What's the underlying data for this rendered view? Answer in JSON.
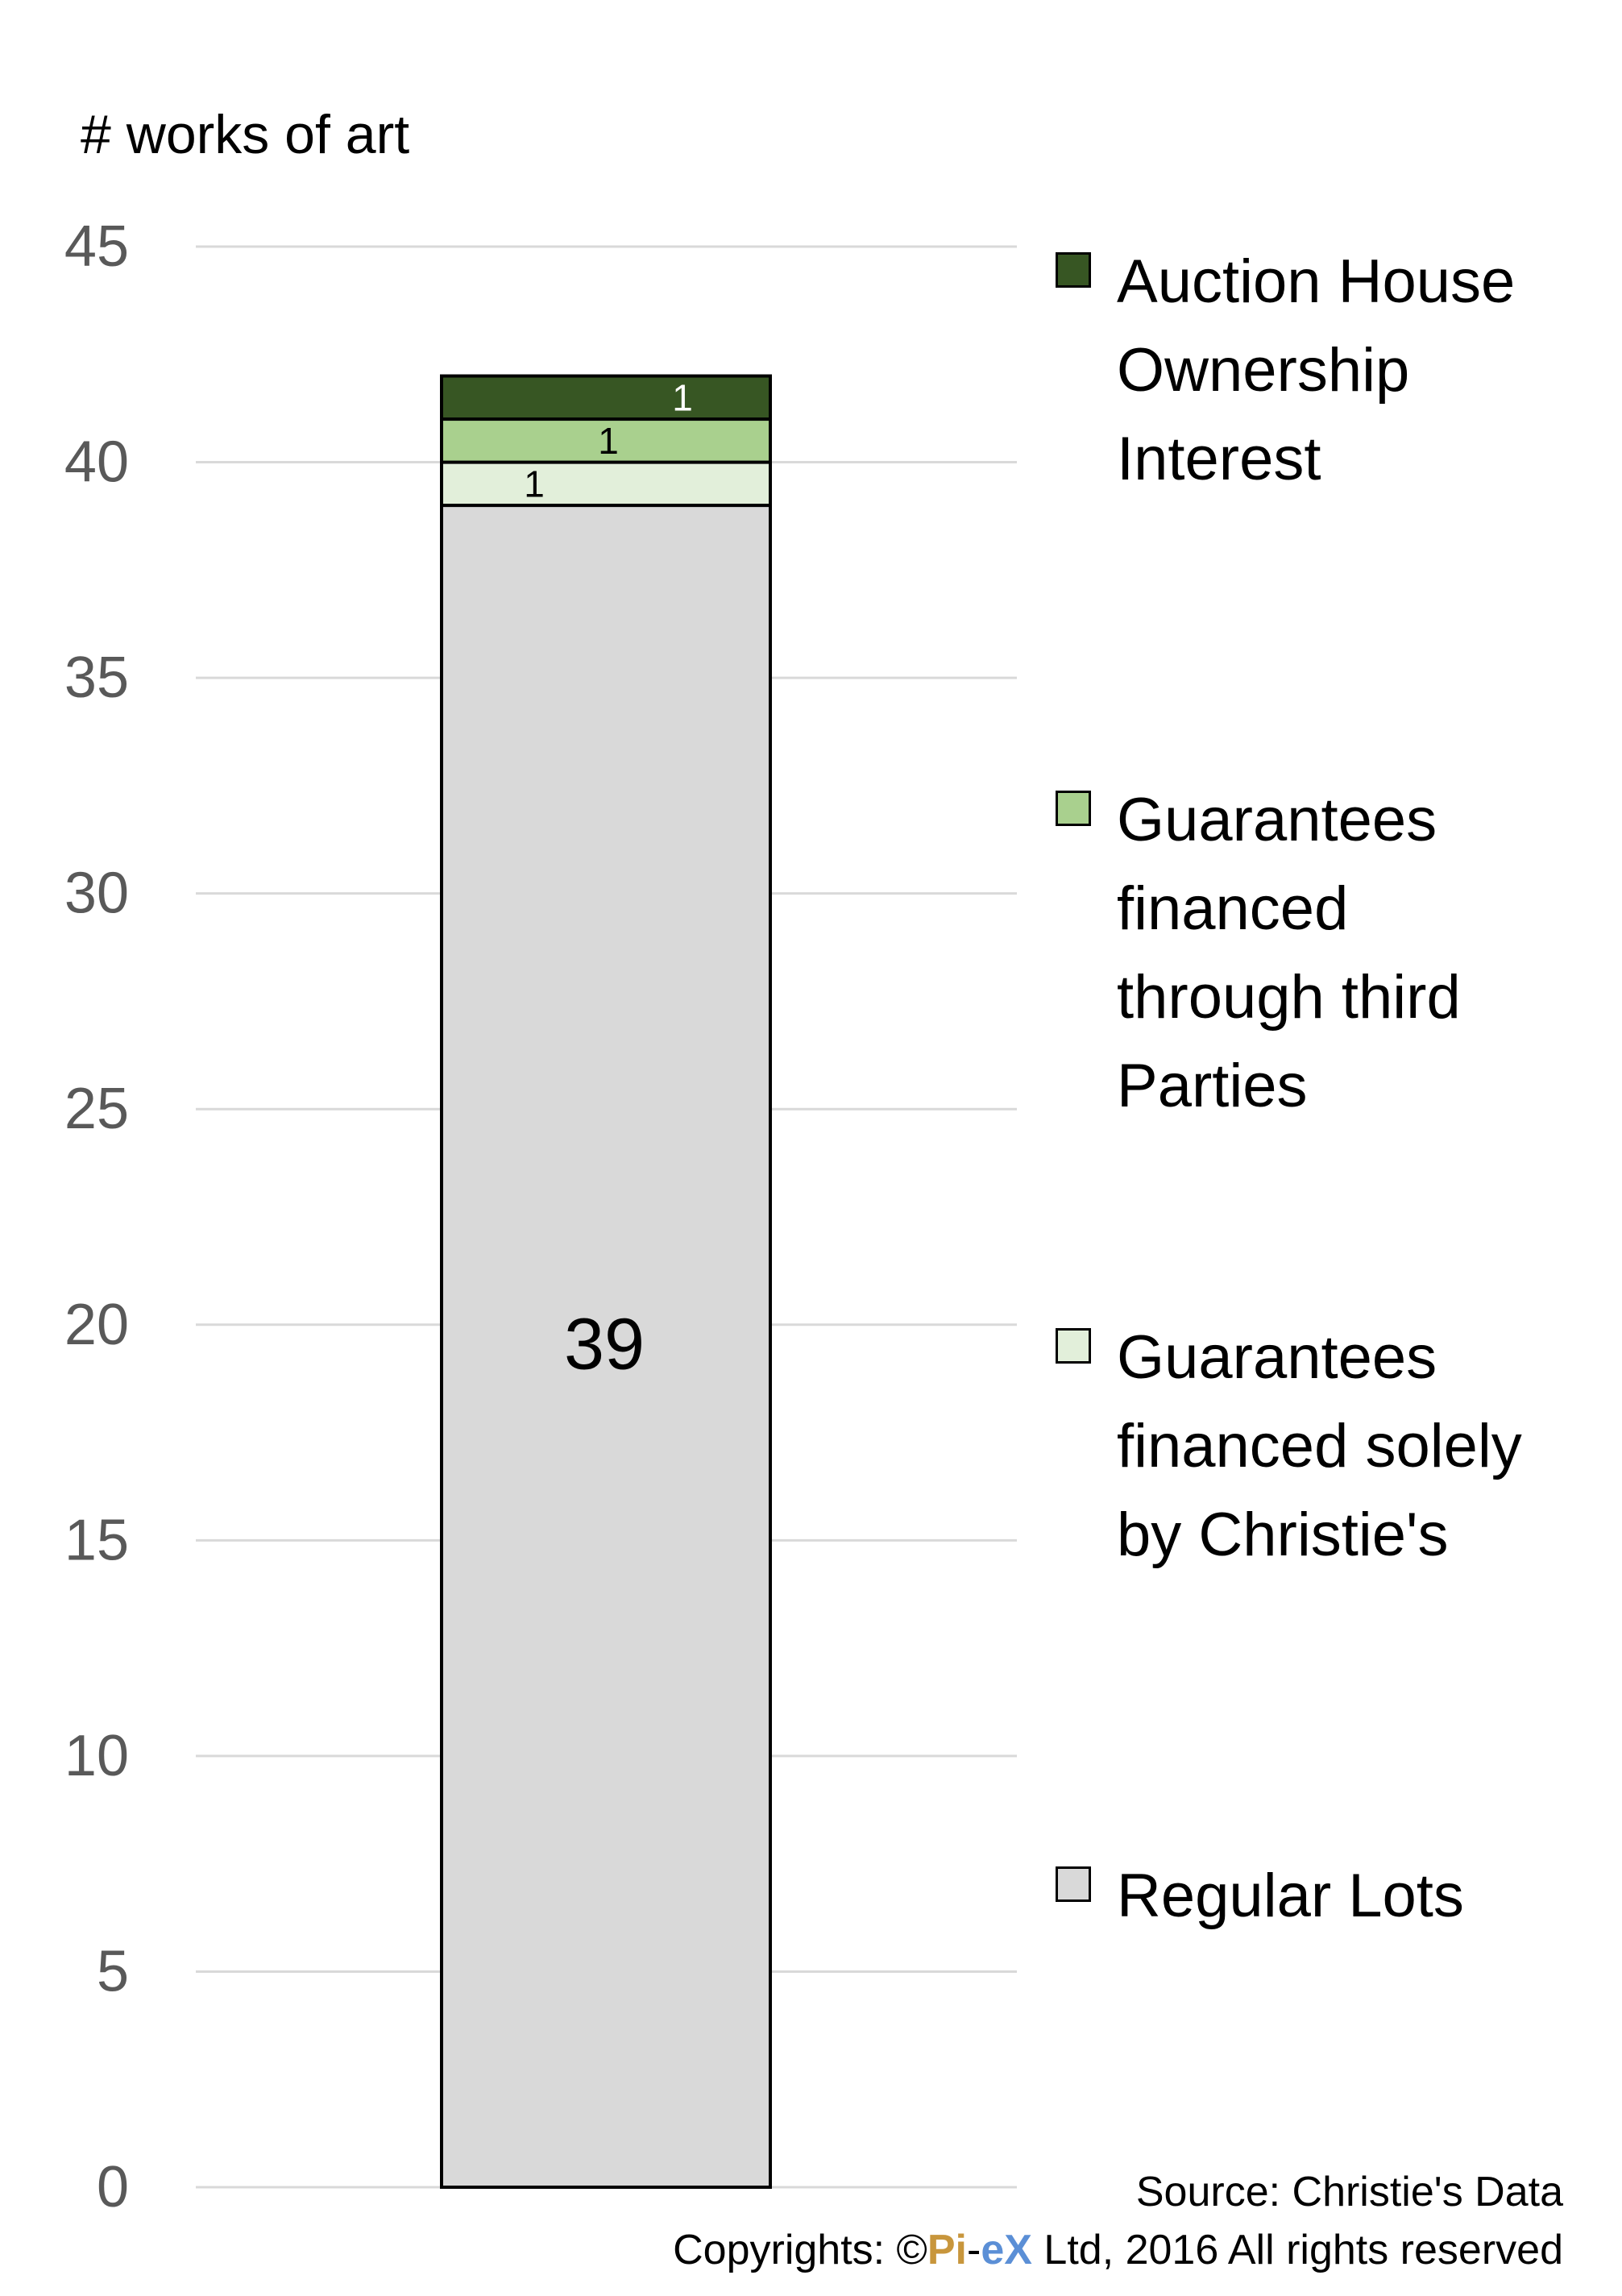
{
  "chart_data": {
    "type": "bar",
    "stacked": true,
    "ylabel": "# works of art",
    "ylim": [
      0,
      45
    ],
    "yticks": [
      0,
      5,
      10,
      15,
      20,
      25,
      30,
      35,
      40,
      45
    ],
    "grid": true,
    "legend_position": "right",
    "series": [
      {
        "name": "Regular Lots",
        "values": [
          39
        ],
        "color": "#d9d9d9",
        "label_color": "#000000"
      },
      {
        "name": "Guarantees financed solely by Christie's",
        "values": [
          1
        ],
        "color": "#e2efda",
        "label_color": "#000000"
      },
      {
        "name": "Guarantees financed through third Parties",
        "values": [
          1
        ],
        "color": "#a9d08e",
        "label_color": "#000000"
      },
      {
        "name": "Auction House Ownership Interest",
        "values": [
          1
        ],
        "color": "#375623",
        "label_color": "#ffffff"
      }
    ]
  },
  "legend": {
    "items": [
      {
        "label_lines": [
          "Auction House",
          "Ownership",
          "Interest"
        ],
        "color": "#375623"
      },
      {
        "label_lines": [
          "Guarantees",
          "financed",
          "through third",
          "Parties"
        ],
        "color": "#a9d08e"
      },
      {
        "label_lines": [
          "Guarantees",
          "financed solely",
          "by Christie's"
        ],
        "color": "#e2efda"
      },
      {
        "label_lines": [
          "Regular Lots"
        ],
        "color": "#d9d9d9"
      }
    ]
  },
  "footer": {
    "source": "Source: Christie's Data",
    "copyright_prefix": "Copyrights: ©",
    "brand_pi": "Pi",
    "brand_dash": "-",
    "brand_ex": "eX",
    "copyright_suffix": " Ltd, 2016 All rights reserved"
  }
}
